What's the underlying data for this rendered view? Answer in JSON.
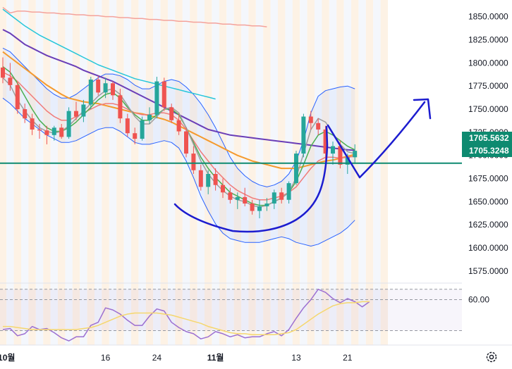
{
  "chart_data": [
    {
      "type": "candlestick",
      "ylim": [
        1562,
        1868
      ],
      "yticks": [
        "1850.0000",
        "1825.0000",
        "1800.0000",
        "1775.0000",
        "1750.0000",
        "1725.0000",
        "1700.0000",
        "1675.0000",
        "1650.0000",
        "1625.0000",
        "1600.0000",
        "1575.0000"
      ],
      "ytick_values": [
        1850,
        1825,
        1800,
        1775,
        1750,
        1725,
        1700,
        1675,
        1650,
        1625,
        1600,
        1575
      ],
      "xticks": [
        {
          "label": "10월",
          "index": 0.5,
          "bold": true
        },
        {
          "label": "16",
          "index": 14,
          "bold": false
        },
        {
          "label": "24",
          "index": 21,
          "bold": false
        },
        {
          "label": "11월",
          "index": 29,
          "bold": true
        },
        {
          "label": "13",
          "index": 40,
          "bold": false
        },
        {
          "label": "21",
          "index": 47,
          "bold": false
        }
      ],
      "candles": [
        [
          1795,
          1806,
          1778,
          1784
        ],
        [
          1784,
          1800,
          1770,
          1776
        ],
        [
          1776,
          1779,
          1745,
          1750
        ],
        [
          1750,
          1756,
          1735,
          1740
        ],
        [
          1740,
          1745,
          1722,
          1728
        ],
        [
          1728,
          1734,
          1718,
          1727
        ],
        [
          1727,
          1732,
          1712,
          1722
        ],
        [
          1722,
          1732,
          1716,
          1730
        ],
        [
          1730,
          1734,
          1718,
          1720
        ],
        [
          1720,
          1752,
          1718,
          1748
        ],
        [
          1748,
          1758,
          1738,
          1742
        ],
        [
          1742,
          1760,
          1736,
          1755
        ],
        [
          1755,
          1785,
          1750,
          1782
        ],
        [
          1782,
          1786,
          1765,
          1768
        ],
        [
          1768,
          1784,
          1762,
          1778
        ],
        [
          1778,
          1780,
          1760,
          1765
        ],
        [
          1765,
          1772,
          1735,
          1740
        ],
        [
          1740,
          1745,
          1720,
          1724
        ],
        [
          1724,
          1730,
          1712,
          1718
        ],
        [
          1718,
          1742,
          1716,
          1738
        ],
        [
          1738,
          1752,
          1734,
          1744
        ],
        [
          1744,
          1785,
          1740,
          1780
        ],
        [
          1780,
          1784,
          1748,
          1752
        ],
        [
          1752,
          1756,
          1735,
          1738
        ],
        [
          1738,
          1745,
          1722,
          1726
        ],
        [
          1726,
          1730,
          1698,
          1702
        ],
        [
          1702,
          1710,
          1680,
          1684
        ],
        [
          1684,
          1690,
          1662,
          1666
        ],
        [
          1666,
          1684,
          1658,
          1680
        ],
        [
          1680,
          1686,
          1662,
          1668
        ],
        [
          1668,
          1675,
          1654,
          1660
        ],
        [
          1660,
          1665,
          1648,
          1652
        ],
        [
          1652,
          1660,
          1642,
          1655
        ],
        [
          1655,
          1665,
          1645,
          1648
        ],
        [
          1648,
          1652,
          1636,
          1640
        ],
        [
          1640,
          1652,
          1632,
          1645
        ],
        [
          1645,
          1654,
          1640,
          1648
        ],
        [
          1648,
          1663,
          1642,
          1660
        ],
        [
          1660,
          1665,
          1648,
          1652
        ],
        [
          1652,
          1672,
          1648,
          1670
        ],
        [
          1670,
          1705,
          1668,
          1702
        ],
        [
          1702,
          1745,
          1698,
          1742
        ],
        [
          1742,
          1748,
          1728,
          1735
        ],
        [
          1735,
          1740,
          1722,
          1728
        ],
        [
          1728,
          1732,
          1695,
          1702
        ],
        [
          1702,
          1715,
          1690,
          1710
        ],
        [
          1710,
          1716,
          1686,
          1690
        ],
        [
          1690,
          1702,
          1680,
          1698
        ],
        [
          1698,
          1712,
          1692,
          1705
        ]
      ],
      "overlays": [
        {
          "color": "#f4a29b",
          "values": [
            1860,
            1854,
            1856,
            1856,
            1855,
            1855,
            1854,
            1854,
            1853,
            1853,
            1852,
            1852,
            1851,
            1851,
            1850,
            1850,
            1849,
            1849,
            1848,
            1848,
            1847,
            1847,
            1846,
            1846,
            1845,
            1845,
            1844,
            1844,
            1843,
            1843,
            1842,
            1842,
            1841,
            1841,
            1840,
            1840,
            1839
          ]
        },
        {
          "color": "#26c6da",
          "values": [
            1858,
            1852,
            1846,
            1840,
            1835,
            1830,
            1826,
            1822,
            1818,
            1814,
            1810,
            1806,
            1802,
            1798,
            1795,
            1792,
            1789,
            1786,
            1783,
            1781,
            1779,
            1777,
            1775,
            1773,
            1771,
            1769,
            1767,
            1765,
            1763,
            1761
          ]
        },
        {
          "color": "#6a3eb7",
          "values": [
            1836,
            1832,
            1826,
            1820,
            1816,
            1812,
            1808,
            1805,
            1802,
            1799,
            1796,
            1792,
            1789,
            1786,
            1783,
            1780,
            1776,
            1772,
            1768,
            1764,
            1760,
            1756,
            1752,
            1748,
            1744,
            1740,
            1736,
            1732,
            1728,
            1726,
            1724,
            1722,
            1721,
            1720,
            1719,
            1718,
            1717,
            1716,
            1715,
            1714,
            1713,
            1712,
            1711,
            1710,
            1709,
            1708,
            1707,
            1706,
            1705.5632
          ]
        },
        {
          "color": "#f59a2d",
          "values": [
            1812,
            1806,
            1800,
            1794,
            1788,
            1782,
            1776,
            1771,
            1766,
            1762,
            1760,
            1758,
            1757,
            1756,
            1754,
            1752,
            1750,
            1748,
            1746,
            1745,
            1743,
            1741,
            1739,
            1736,
            1732,
            1728,
            1724,
            1720,
            1716,
            1712,
            1708,
            1704,
            1700,
            1697,
            1694,
            1692,
            1690,
            1688,
            1686,
            1686,
            1686,
            1688,
            1690,
            1692,
            1694,
            1695,
            1697,
            1699,
            1701
          ]
        },
        {
          "color": "#f17b79",
          "values": [
            1790,
            1786,
            1780,
            1772,
            1764,
            1756,
            1748,
            1742,
            1738,
            1738,
            1742,
            1746,
            1750,
            1754,
            1756,
            1756,
            1754,
            1750,
            1746,
            1744,
            1744,
            1746,
            1746,
            1744,
            1738,
            1728,
            1716,
            1704,
            1694,
            1684,
            1676,
            1668,
            1662,
            1658,
            1654,
            1652,
            1652,
            1654,
            1656,
            1660,
            1666,
            1676,
            1686,
            1694,
            1698,
            1698,
            1697,
            1698,
            1699
          ]
        },
        {
          "color": "#4caf50",
          "values": [
            1796,
            1790,
            1778,
            1764,
            1750,
            1738,
            1730,
            1726,
            1726,
            1730,
            1736,
            1744,
            1752,
            1760,
            1766,
            1768,
            1762,
            1752,
            1744,
            1738,
            1738,
            1744,
            1750,
            1750,
            1744,
            1730,
            1714,
            1698,
            1686,
            1676,
            1668,
            1660,
            1656,
            1652,
            1648,
            1646,
            1646,
            1650,
            1654,
            1660,
            1672,
            1690,
            1710,
            1722,
            1726,
            1722,
            1716,
            1710,
            1706
          ]
        },
        {
          "color": "#9e9e9e",
          "values": [
            1784,
            1776,
            1760,
            1748,
            1738,
            1730,
            1726,
            1724,
            1726,
            1732,
            1740,
            1748,
            1756,
            1764,
            1770,
            1772,
            1766,
            1754,
            1742,
            1734,
            1734,
            1742,
            1750,
            1752,
            1746,
            1730,
            1712,
            1694,
            1680,
            1670,
            1662,
            1656,
            1652,
            1650,
            1646,
            1644,
            1646,
            1650,
            1654,
            1660,
            1676,
            1702,
            1728,
            1740,
            1736,
            1724,
            1712,
            1704,
            1702
          ]
        }
      ],
      "bollinger_upper": [
        1816,
        1812,
        1804,
        1796,
        1788,
        1780,
        1772,
        1766,
        1762,
        1762,
        1766,
        1772,
        1778,
        1784,
        1788,
        1788,
        1786,
        1782,
        1776,
        1772,
        1772,
        1776,
        1780,
        1782,
        1780,
        1774,
        1766,
        1756,
        1744,
        1730,
        1714,
        1698,
        1686,
        1678,
        1672,
        1668,
        1666,
        1668,
        1672,
        1680,
        1694,
        1716,
        1746,
        1764,
        1770,
        1772,
        1774,
        1775,
        1772
      ],
      "bollinger_lower": [
        1762,
        1756,
        1748,
        1740,
        1734,
        1728,
        1722,
        1718,
        1714,
        1714,
        1716,
        1720,
        1724,
        1728,
        1730,
        1730,
        1726,
        1720,
        1714,
        1712,
        1712,
        1714,
        1716,
        1714,
        1708,
        1694,
        1676,
        1656,
        1640,
        1626,
        1616,
        1610,
        1608,
        1606,
        1606,
        1606,
        1608,
        1610,
        1612,
        1610,
        1606,
        1604,
        1602,
        1604,
        1608,
        1612,
        1616,
        1622,
        1630
      ],
      "price_tags": [
        {
          "label": "1705.5632",
          "value": 1705.5632,
          "color": "#0e8a70"
        },
        {
          "label": "1705.3248",
          "value": 1705.3248,
          "color": "#0e8a70"
        }
      ],
      "horizontal_line": {
        "value": 1705.3248,
        "color": "#0e8a70"
      },
      "drawings": {
        "color": "#1c1ccf"
      }
    },
    {
      "type": "line",
      "yticks": [
        "60.00"
      ],
      "ytick_values": [
        60
      ],
      "ylim": [
        16,
        76
      ],
      "dashed_levels": [
        70,
        60,
        30
      ],
      "series": [
        {
          "color": "#9c6fd1",
          "values": [
            31,
            32,
            25,
            27,
            34,
            31,
            32,
            28,
            23,
            20,
            24,
            24,
            35,
            38,
            52,
            50,
            46,
            40,
            35,
            35,
            44,
            51,
            49,
            38,
            33,
            29,
            27,
            22,
            24,
            29,
            27,
            24,
            26,
            23,
            24,
            24,
            27,
            29,
            25,
            31,
            42,
            52,
            60,
            70,
            67,
            61,
            57,
            61,
            58,
            53,
            58
          ]
        },
        {
          "color": "#f5d76e",
          "values": [
            34,
            34,
            33,
            32,
            31,
            31,
            31,
            31,
            31,
            31,
            31,
            32,
            33,
            35,
            38,
            41,
            44,
            46,
            47,
            47,
            47,
            47,
            46,
            45,
            43,
            41,
            39,
            37,
            34,
            32,
            30,
            28,
            27,
            27,
            26,
            26,
            26,
            26,
            27,
            28,
            31,
            36,
            41,
            46,
            50,
            54,
            56,
            57,
            57,
            58,
            58
          ]
        }
      ]
    }
  ]
}
